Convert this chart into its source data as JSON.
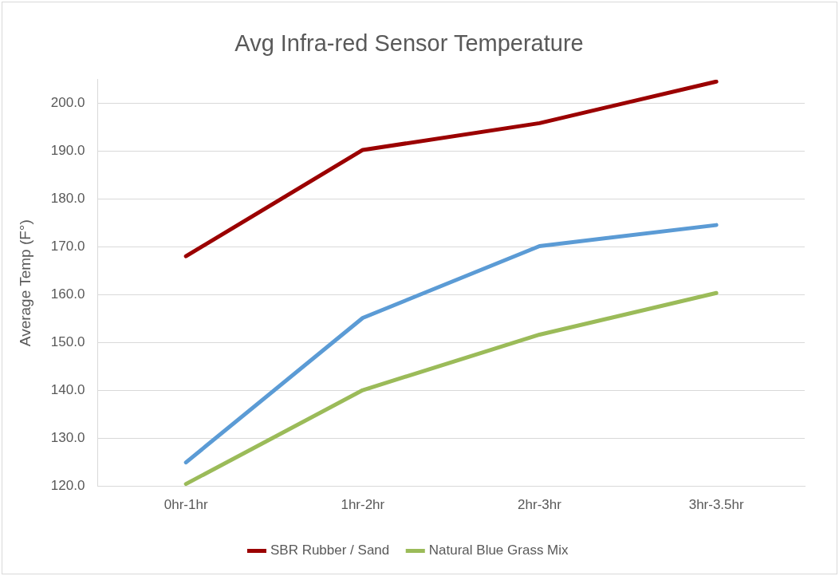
{
  "chart_data": {
    "type": "line",
    "title": "Avg Infra-red Sensor Temperature",
    "ylabel": "Average Temp (F°)",
    "categories": [
      "0hr-1hr",
      "1hr-2hr",
      "2hr-3hr",
      "3hr-3.5hr"
    ],
    "series": [
      {
        "color": "#5b9bd5",
        "values": [
          125.0,
          155.2,
          170.2,
          174.6
        ]
      },
      {
        "name": "SBR Rubber / Sand",
        "color": "#9b0000",
        "values": [
          168.1,
          190.3,
          195.9,
          204.6
        ]
      },
      {
        "name": "Natural Blue Grass Mix",
        "color": "#9bbb59",
        "values": [
          120.5,
          140.1,
          151.7,
          160.4
        ]
      }
    ],
    "ylim": [
      120,
      205
    ],
    "yticks": [
      {
        "value": 120,
        "label": "120.0"
      },
      {
        "value": 130,
        "label": "130.0"
      },
      {
        "value": 140,
        "label": "140.0"
      },
      {
        "value": 150,
        "label": "150.0"
      },
      {
        "value": 160,
        "label": "160.0"
      },
      {
        "value": 170,
        "label": "170.0"
      },
      {
        "value": 180,
        "label": "180.0"
      },
      {
        "value": 190,
        "label": "190.0"
      },
      {
        "value": 200,
        "label": "200.0"
      }
    ],
    "grid": "y",
    "legend": "bottom",
    "marker": "none",
    "line_style": "solid"
  }
}
